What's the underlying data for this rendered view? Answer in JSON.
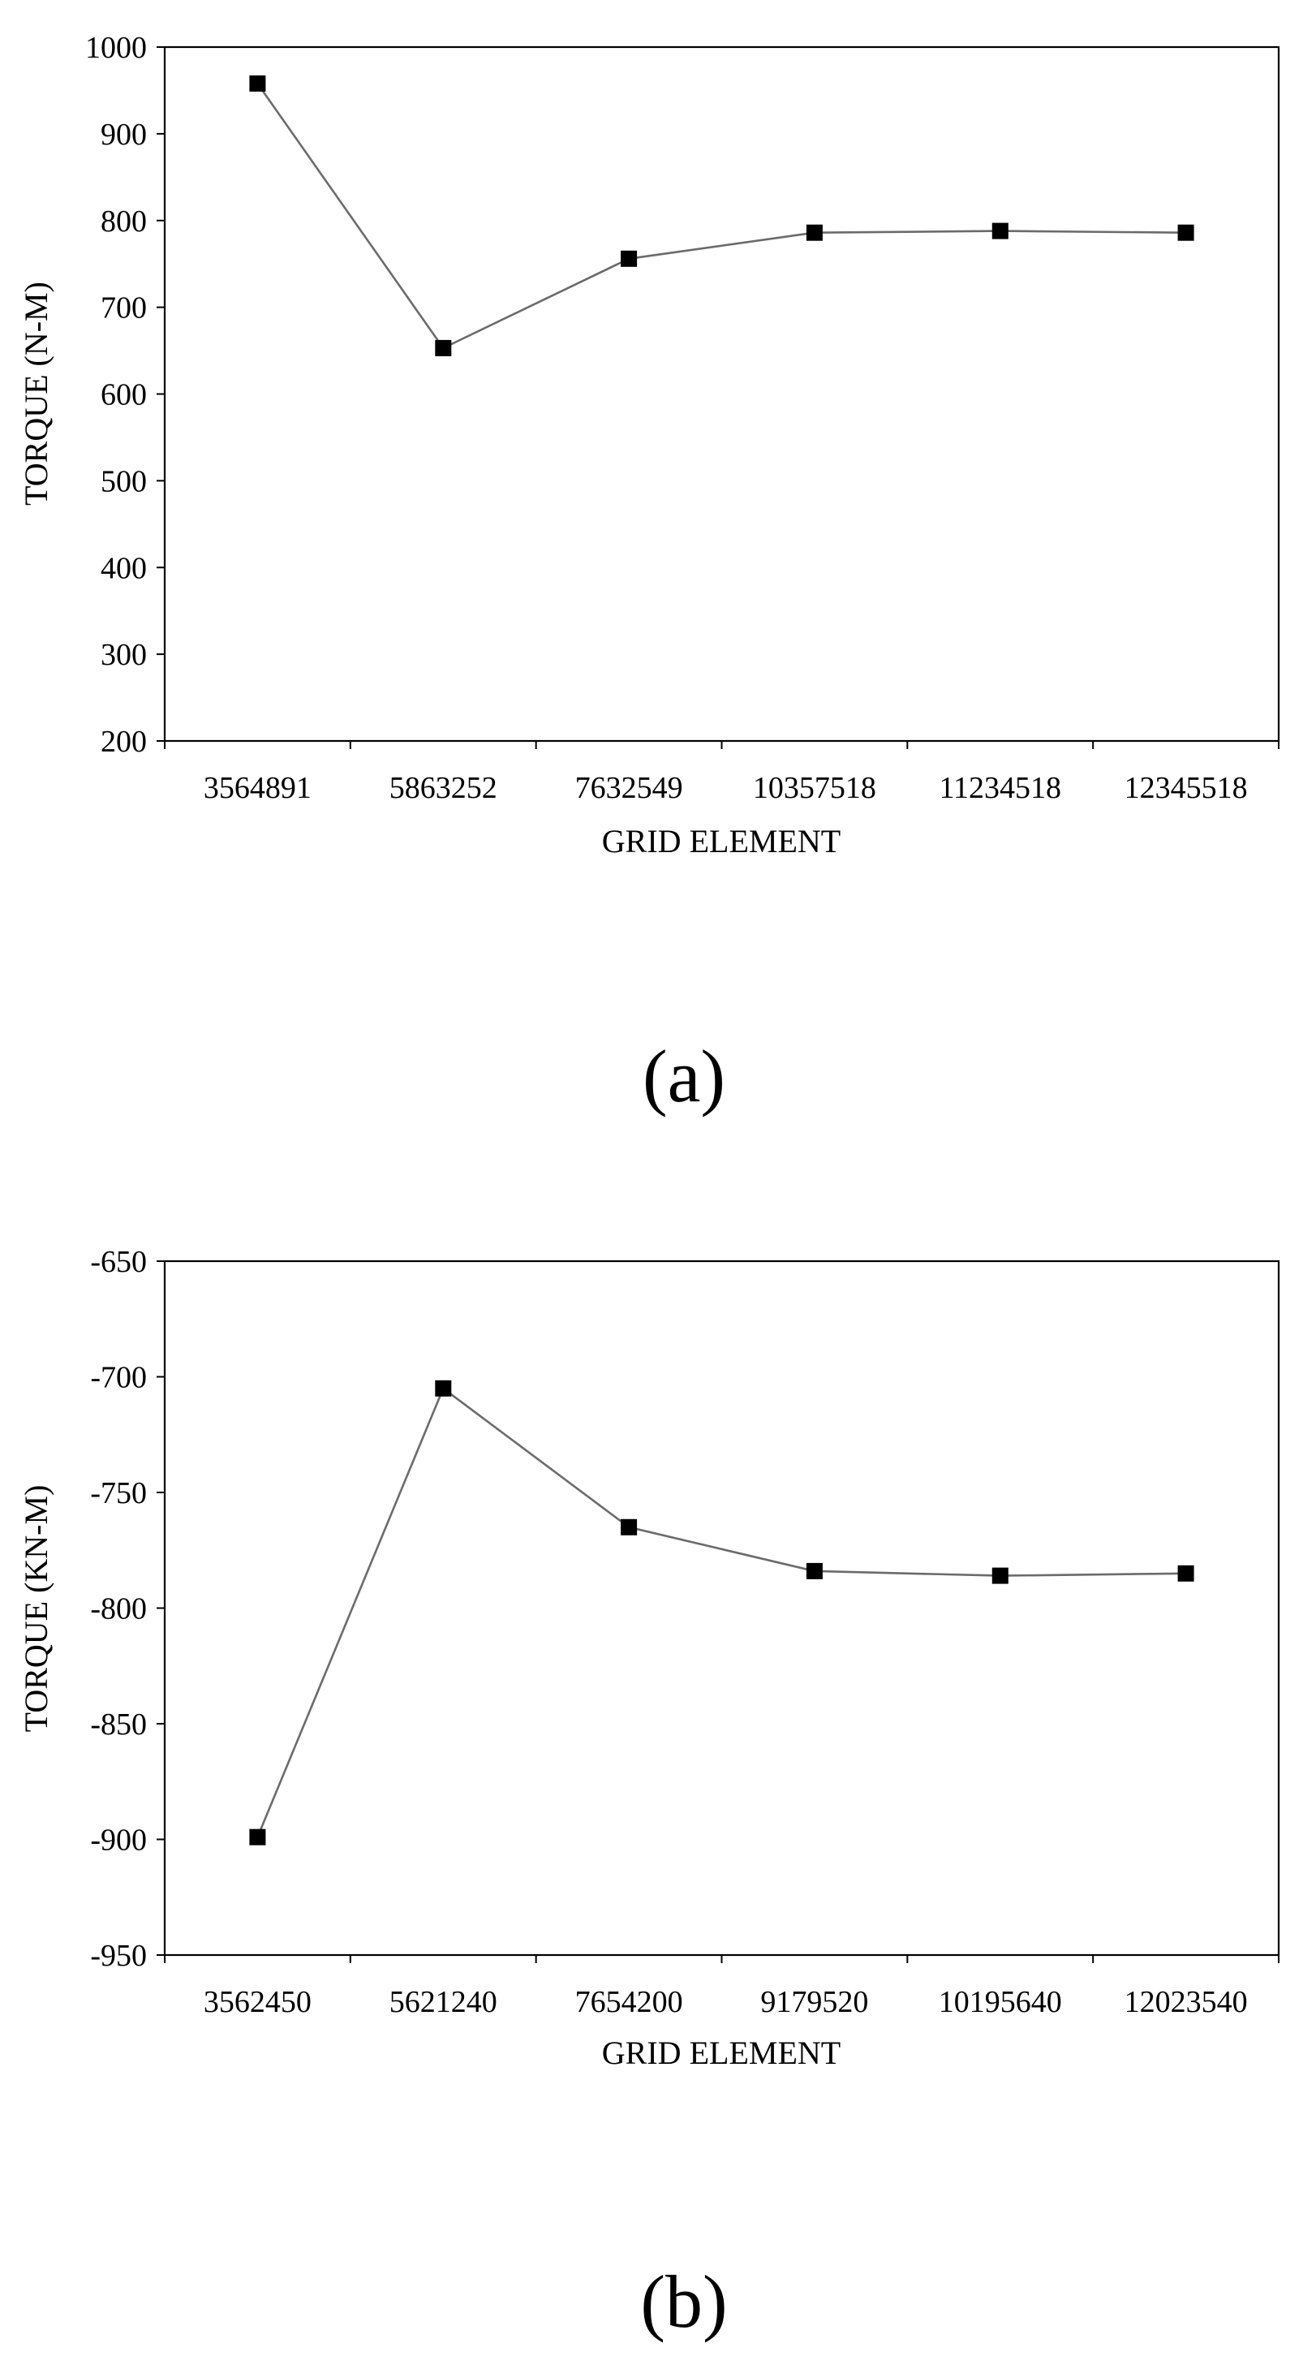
{
  "chart_data": [
    {
      "type": "line",
      "panel_label": "(a)",
      "xlabel": "GRID ELEMENT",
      "ylabel": "TORQUE (N-M)",
      "categories": [
        "3564891",
        "5863252",
        "7632549",
        "10357518",
        "11234518",
        "12345518"
      ],
      "series": [
        {
          "values": [
            958,
            653,
            756,
            786,
            788,
            786
          ]
        }
      ],
      "ylim": [
        200,
        1000
      ],
      "yticks": [
        200,
        300,
        400,
        500,
        600,
        700,
        800,
        900,
        1000
      ],
      "grid": false,
      "marker": "square",
      "line_color": "#6b6b6b",
      "marker_color": "#000000"
    },
    {
      "type": "line",
      "panel_label": "(b)",
      "xlabel": "GRID ELEMENT",
      "ylabel": "TORQUE (KN-M)",
      "categories": [
        "3562450",
        "5621240",
        "7654200",
        "9179520",
        "10195640",
        "12023540"
      ],
      "series": [
        {
          "values": [
            -899,
            -705,
            -765,
            -784,
            -786,
            -785
          ]
        }
      ],
      "ylim": [
        -950,
        -650
      ],
      "yticks": [
        -950,
        -900,
        -850,
        -800,
        -750,
        -700,
        -650
      ],
      "grid": false,
      "marker": "square",
      "line_color": "#6b6b6b",
      "marker_color": "#000000"
    }
  ]
}
